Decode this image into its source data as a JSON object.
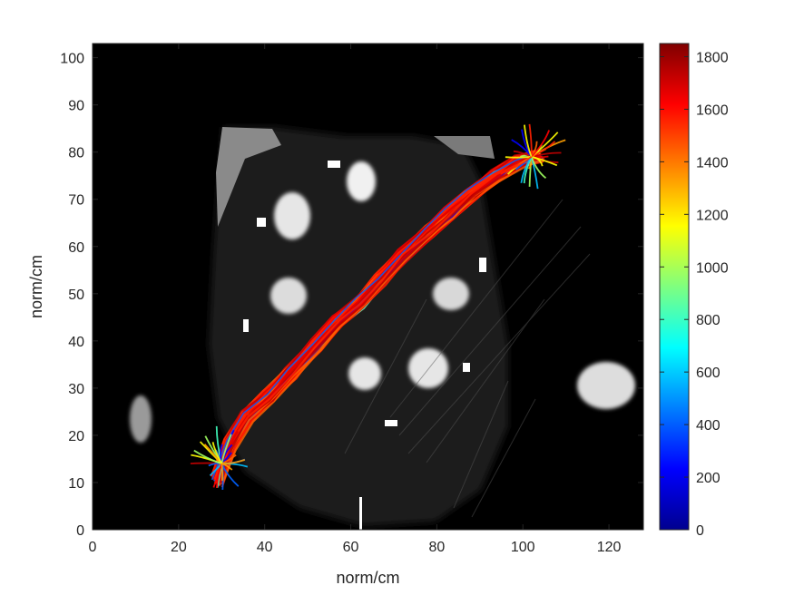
{
  "chart_data": {
    "type": "scatter",
    "title": "",
    "xlabel": "norm/cm",
    "ylabel": "norm/cm",
    "xlim": [
      0,
      128
    ],
    "ylim": [
      0,
      103
    ],
    "grid": false,
    "background": "grayscale CT slice image",
    "x_ticks": [
      0,
      20,
      40,
      60,
      80,
      100,
      120
    ],
    "y_ticks": [
      0,
      10,
      20,
      30,
      40,
      50,
      60,
      70,
      80,
      90,
      100
    ],
    "x_tick_labels": [
      "0",
      "20",
      "40",
      "60",
      "80",
      "100",
      "120"
    ],
    "y_tick_labels": [
      "0",
      "10",
      "20",
      "30",
      "40",
      "50",
      "60",
      "70",
      "80",
      "90",
      "100"
    ],
    "colormap": "jet",
    "colorbar": {
      "limits": [
        0,
        1850
      ],
      "ticks": [
        0,
        200,
        400,
        600,
        800,
        1000,
        1200,
        1400,
        1600,
        1800
      ],
      "tick_labels": [
        "0",
        "200",
        "400",
        "600",
        "800",
        "1000",
        "1200",
        "1400",
        "1600",
        "1800"
      ]
    },
    "trajectory_path": {
      "x": [
        29,
        32,
        36,
        41,
        46,
        52,
        57,
        62,
        67,
        72,
        78,
        83,
        88,
        94,
        99,
        104
      ],
      "y": [
        10,
        18,
        24,
        28,
        33,
        39,
        44,
        48,
        53,
        58,
        63,
        67,
        71,
        75,
        78,
        79
      ]
    },
    "colors": {
      "image_background": "#000000",
      "axis": "#262626"
    }
  }
}
